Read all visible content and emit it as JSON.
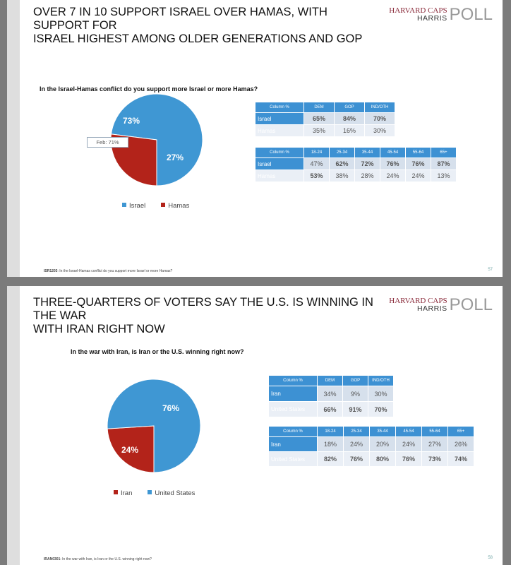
{
  "colors": {
    "blue": "#3f97d3",
    "red": "#b3231a",
    "header": "#3d91d3"
  },
  "logo": {
    "line1": "HARVARD CAPS",
    "line2": "HARRIS",
    "line3": "POLL"
  },
  "slides": [
    {
      "title_line1": "OVER 7 IN 10 SUPPORT ISRAEL OVER HAMAS, WITH SUPPORT FOR",
      "title_line2": "ISRAEL HIGHEST AMONG OLDER GENERATIONS AND GOP",
      "question": "In the Israel-Hamas conflict do you support more Israel or more Hamas?",
      "annotation": "Feb: 71%",
      "footer_code": "ISR1203",
      "footer_text": ": In the Israel-Hamas conflict do you support more Israel or more Hamas?",
      "page": "57",
      "party_table": {
        "header": [
          "Column %",
          "DEM",
          "GOP",
          "IND/OTH"
        ],
        "rows": [
          {
            "label": "Israel",
            "values": [
              "65%",
              "84%",
              "70%"
            ],
            "bold": [
              true,
              true,
              true
            ]
          },
          {
            "label": "Hamas",
            "values": [
              "35%",
              "16%",
              "30%"
            ],
            "bold": [
              false,
              false,
              false
            ]
          }
        ]
      },
      "age_table": {
        "header": [
          "Column %",
          "18-24",
          "25-34",
          "35-44",
          "45-54",
          "55-64",
          "65+"
        ],
        "rows": [
          {
            "label": "Israel",
            "values": [
              "47%",
              "62%",
              "72%",
              "76%",
              "76%",
              "87%"
            ],
            "bold": [
              false,
              true,
              true,
              true,
              true,
              true
            ]
          },
          {
            "label": "Hamas",
            "values": [
              "53%",
              "38%",
              "28%",
              "24%",
              "24%",
              "13%"
            ],
            "bold": [
              true,
              false,
              false,
              false,
              false,
              false
            ]
          }
        ]
      }
    },
    {
      "title_line1": "THREE-QUARTERS OF VOTERS SAY THE U.S. IS WINNING IN THE WAR",
      "title_line2": "WITH IRAN RIGHT NOW",
      "question": "In the war with Iran, is Iran or the U.S. winning right now?",
      "footer_code": "IRAN0301",
      "footer_text": ": In the war with Iran, is Iran or the U.S. winning right now?",
      "page": "58",
      "party_table": {
        "header": [
          "Column %",
          "DEM",
          "GOP",
          "IND/OTH"
        ],
        "rows": [
          {
            "label": "Iran",
            "values": [
              "34%",
              "9%",
              "30%"
            ],
            "bold": [
              false,
              false,
              false
            ]
          },
          {
            "label": "United States",
            "values": [
              "66%",
              "91%",
              "70%"
            ],
            "bold": [
              true,
              true,
              true
            ]
          }
        ]
      },
      "age_table": {
        "header": [
          "Column %",
          "18-24",
          "25-34",
          "35-44",
          "45-54",
          "55-64",
          "65+"
        ],
        "rows": [
          {
            "label": "Iran",
            "values": [
              "18%",
              "24%",
              "20%",
              "24%",
              "27%",
              "26%"
            ],
            "bold": [
              false,
              false,
              false,
              false,
              false,
              false
            ]
          },
          {
            "label": "United States",
            "values": [
              "82%",
              "76%",
              "80%",
              "76%",
              "73%",
              "74%"
            ],
            "bold": [
              true,
              true,
              true,
              true,
              true,
              true
            ]
          }
        ]
      }
    }
  ],
  "chart_data": [
    {
      "type": "pie",
      "categories": [
        "Israel",
        "Hamas"
      ],
      "values": [
        73,
        27
      ],
      "labels": [
        "73%",
        "27%"
      ],
      "colors": [
        "#3f97d3",
        "#b3231a"
      ],
      "legend": "bottom"
    },
    {
      "type": "pie",
      "categories": [
        "Iran",
        "United States"
      ],
      "values": [
        24,
        76
      ],
      "labels": [
        "24%",
        "76%"
      ],
      "colors": [
        "#b3231a",
        "#3f97d3"
      ],
      "legend": "bottom"
    }
  ]
}
